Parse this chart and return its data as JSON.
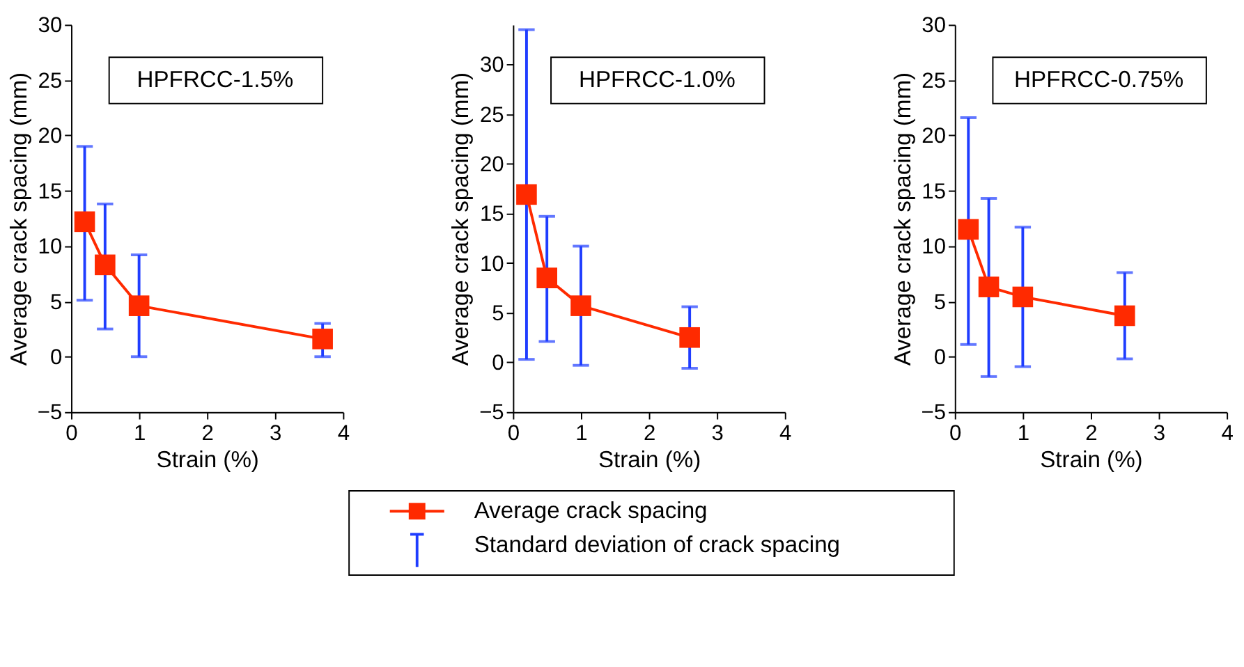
{
  "chart_data": [
    {
      "type": "line",
      "xlabel": "Strain (%)",
      "ylabel": "Average crack spacing (mm)",
      "annotations": [
        "HPFRCC-1.5%",
        "Standard deviation of crack spacing"
      ],
      "marker": "square",
      "legend": "bottom",
      "grid": false,
      "series": [
        {
          "name": "Average crack spacing",
          "color": "#ff2a00",
          "x": [
            0.2,
            0.5,
            1.0,
            3.7
          ],
          "values": [
            12.2,
            8.3,
            4.6,
            1.6
          ],
          "errors": [
            [
              5.1,
              19.0
            ],
            [
              2.5,
              13.8
            ],
            [
              0.0,
              9.2
            ],
            [
              0.0,
              3.0
            ]
          ]
        }
      ],
      "xlim": [
        0,
        4
      ],
      "xticks": [
        0,
        1,
        2,
        3,
        4
      ],
      "ylim": [
        -5,
        30
      ],
      "yticks": [
        -5,
        0,
        5,
        10,
        15,
        20,
        25,
        30
      ]
    },
    {
      "type": "line",
      "xlabel": "Strain (%)",
      "ylabel": "Average crack spacing (mm)",
      "annotations": [
        "HPFRCC-1.0%"
      ],
      "marker": "square",
      "grid": false,
      "series": [
        {
          "color": "#ff2a00",
          "x": [
            0.2,
            0.5,
            1.0,
            2.6
          ],
          "values": [
            16.9,
            8.5,
            5.7,
            2.5
          ],
          "errors": [
            [
              0.3,
              33.5
            ],
            [
              2.1,
              14.7
            ],
            [
              -0.3,
              11.7
            ],
            [
              -0.6,
              5.6
            ]
          ]
        }
      ],
      "xlim": [
        0,
        4
      ],
      "xticks": [
        0,
        1,
        2,
        3,
        4
      ],
      "ylim": [
        -5,
        34
      ],
      "yticks": [
        -5,
        0,
        5,
        10,
        15,
        20,
        25,
        30
      ]
    },
    {
      "type": "line",
      "xlabel": "Strain (%)",
      "ylabel": "Average crack spacing (mm)",
      "annotations": [
        "HPFRCC-0.75%"
      ],
      "marker": "square",
      "grid": false,
      "series": [
        {
          "color": "#ff2a00",
          "x": [
            0.2,
            0.5,
            1.0,
            2.5
          ],
          "values": [
            11.5,
            6.3,
            5.4,
            3.7
          ],
          "errors": [
            [
              1.1,
              21.6
            ],
            [
              -1.8,
              14.3
            ],
            [
              -0.9,
              11.7
            ],
            [
              -0.2,
              7.6
            ]
          ]
        }
      ],
      "xlim": [
        0,
        4
      ],
      "xticks": [
        0,
        1,
        2,
        3,
        4
      ],
      "ylim": [
        -5,
        30
      ],
      "yticks": [
        -5,
        0,
        5,
        10,
        15,
        20,
        25,
        30
      ]
    }
  ]
}
